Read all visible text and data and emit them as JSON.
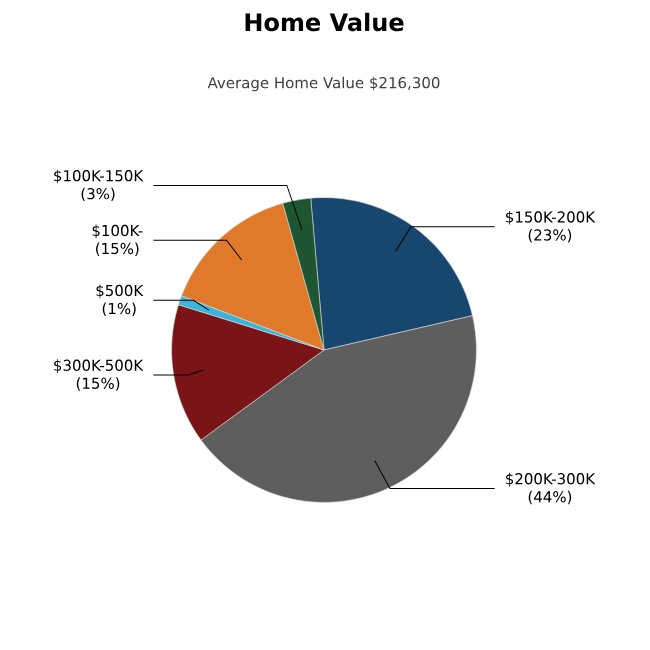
{
  "chart_data": {
    "type": "pie",
    "title": "Home Value",
    "subtitle": "Average Home Value $216,300",
    "categories": [
      "$150K-200K",
      "$200K-300K",
      "$300K-500K",
      "$500K",
      "$100K-",
      "$100K-150K"
    ],
    "values": [
      23,
      44,
      15,
      1,
      15,
      3
    ],
    "value_labels": [
      "(23%)",
      "(44%)",
      "(15%)",
      "(1%)",
      "(15%)",
      "(3%)"
    ],
    "colors": [
      "#17466e",
      "#5e5e5e",
      "#7b1417",
      "#3ab4dc",
      "#e07a2a",
      "#1e5631"
    ]
  }
}
